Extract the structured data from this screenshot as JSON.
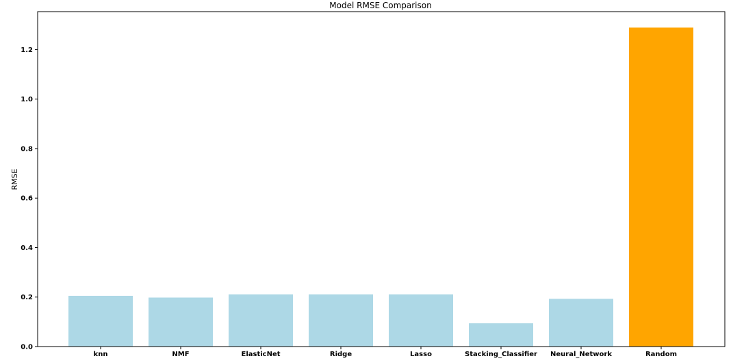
{
  "chart_data": {
    "type": "bar",
    "title": "Model RMSE Comparison",
    "xlabel": "",
    "ylabel": "RMSE",
    "categories": [
      "knn",
      "NMF",
      "ElasticNet",
      "Ridge",
      "Lasso",
      "Stacking_Classifier",
      "Neural_Network",
      "Random"
    ],
    "values": [
      0.205,
      0.198,
      0.211,
      0.211,
      0.211,
      0.094,
      0.193,
      1.289
    ],
    "colors": [
      "#add8e6",
      "#add8e6",
      "#add8e6",
      "#add8e6",
      "#add8e6",
      "#add8e6",
      "#add8e6",
      "#ffa500"
    ],
    "ylim": [
      0,
      1.3535
    ],
    "yticks": [
      0.0,
      0.2,
      0.4,
      0.6,
      0.8,
      1.0,
      1.2
    ],
    "ytick_labels": [
      "0.0",
      "0.2",
      "0.4",
      "0.6",
      "0.8",
      "1.0",
      "1.2"
    ],
    "grid": false,
    "legend": false
  }
}
